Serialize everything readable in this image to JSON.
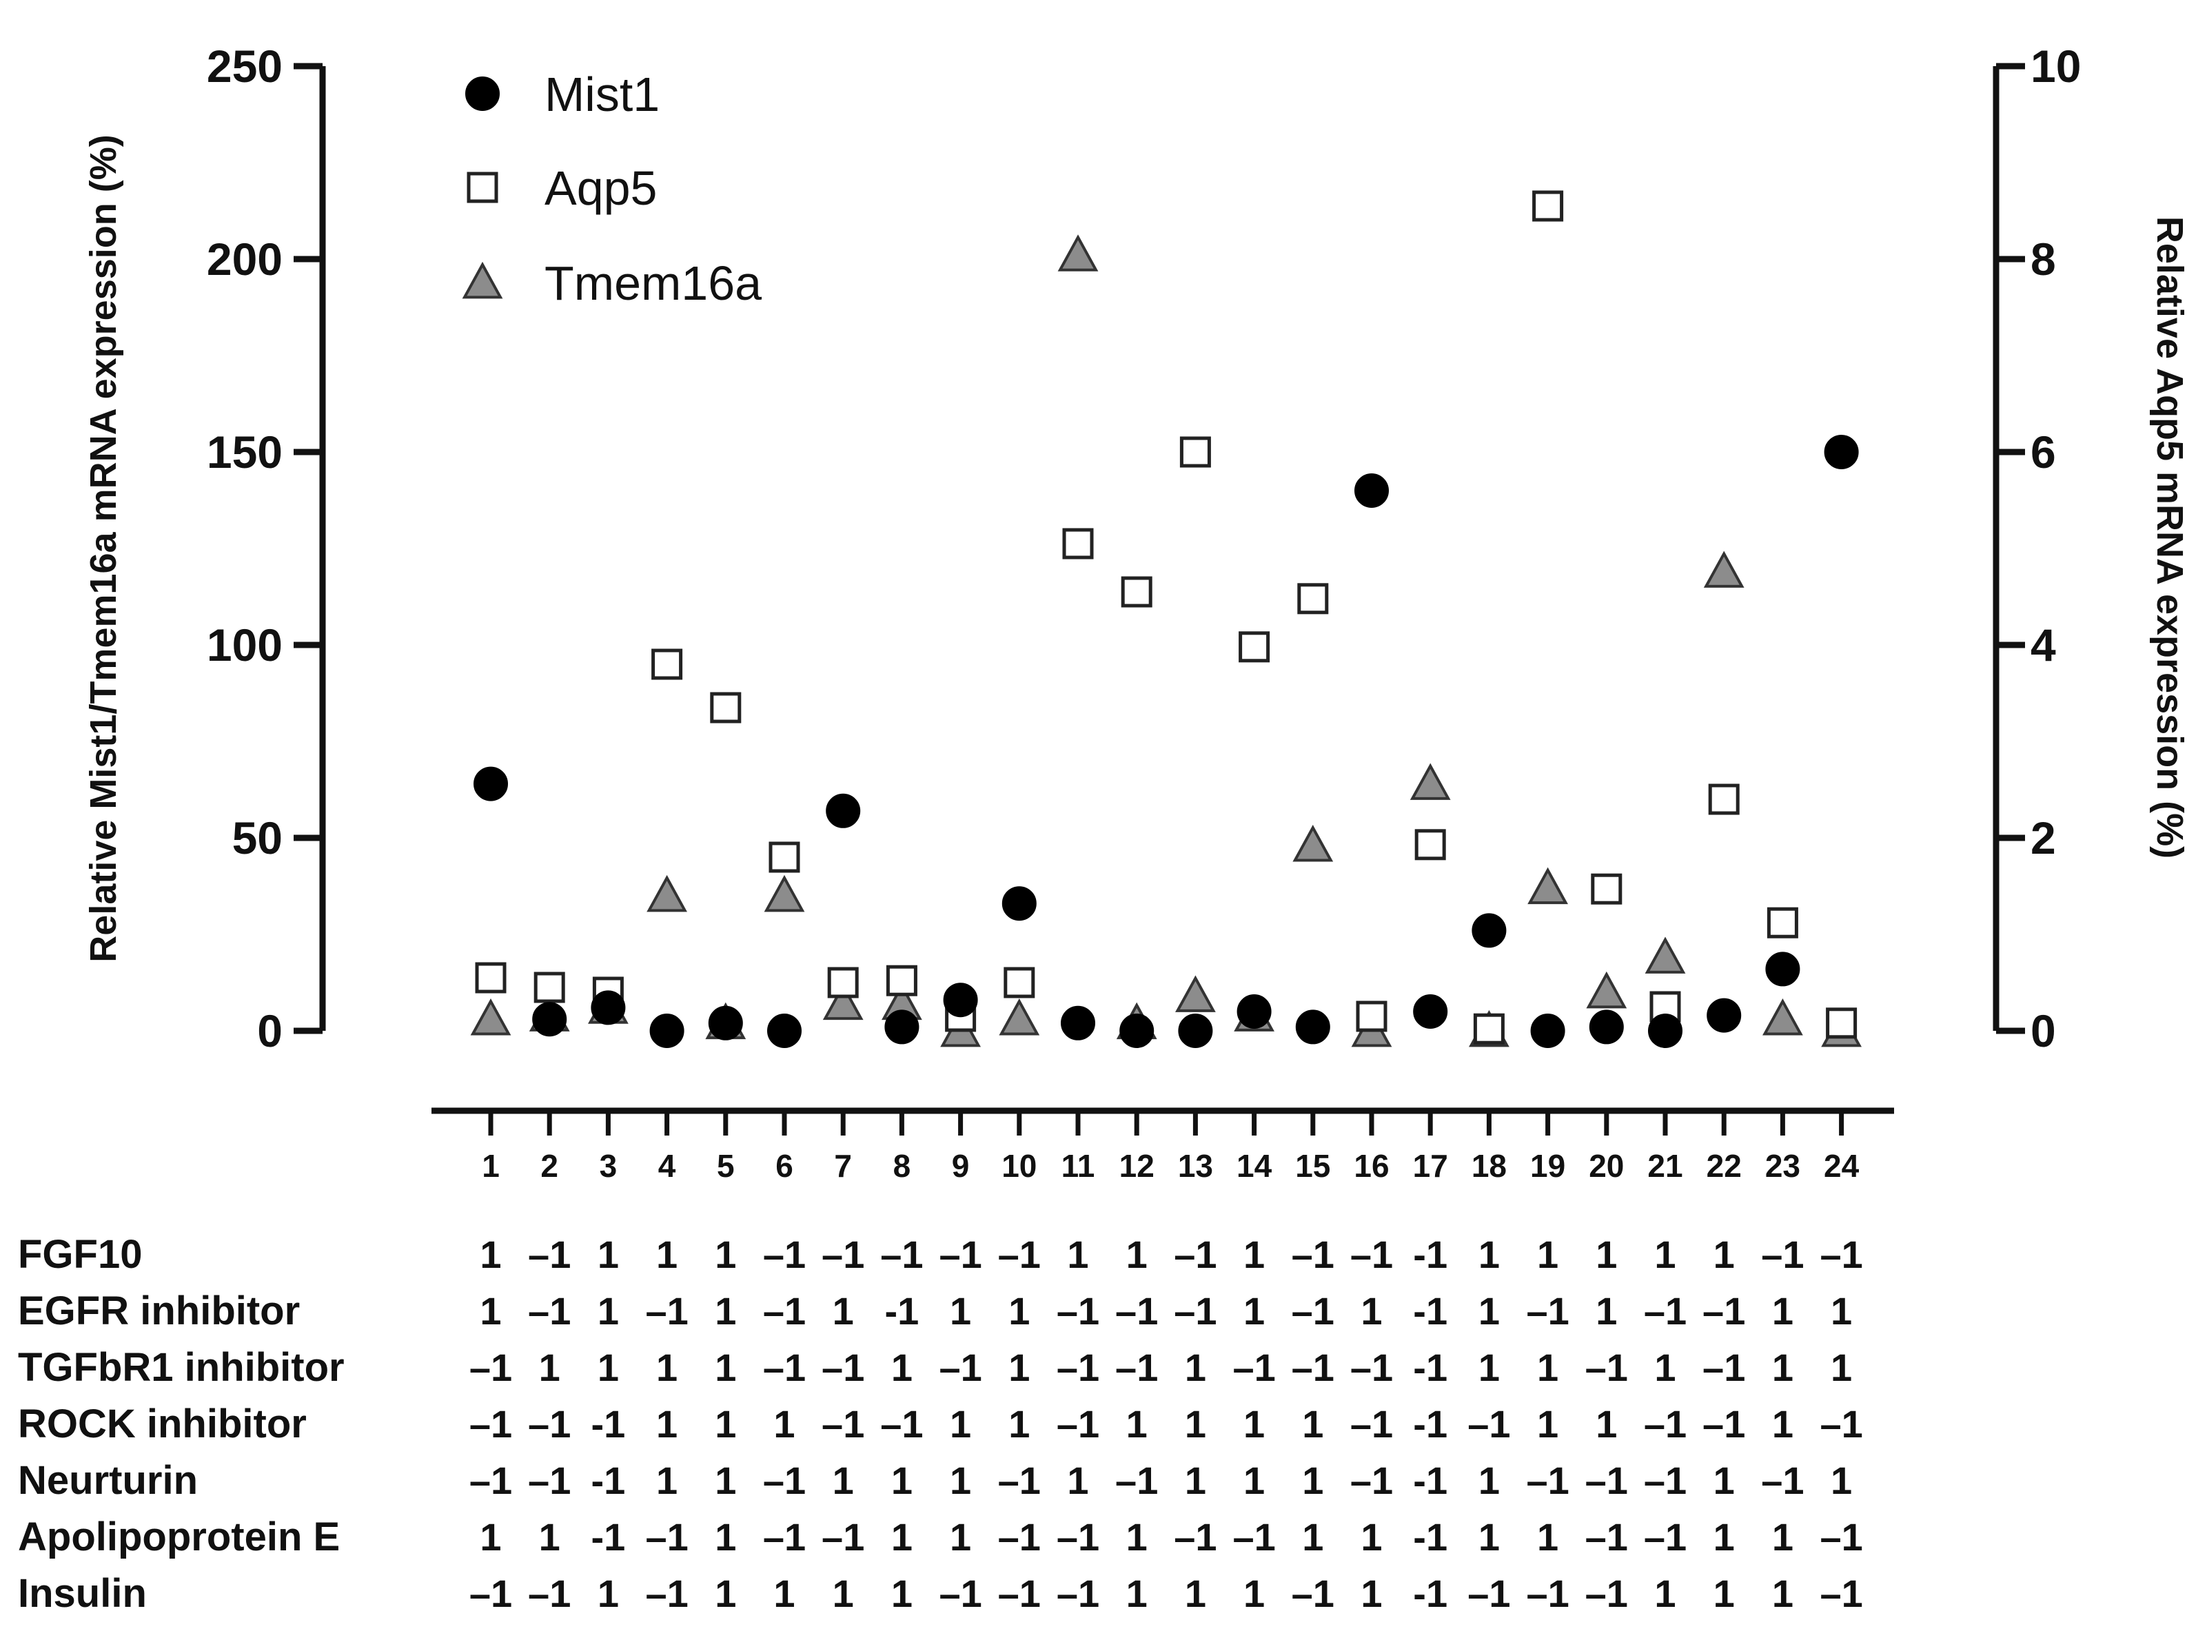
{
  "chart_data": {
    "type": "scatter",
    "categories": [
      "1",
      "2",
      "3",
      "4",
      "5",
      "6",
      "7",
      "8",
      "9",
      "10",
      "11",
      "12",
      "13",
      "14",
      "15",
      "16",
      "17",
      "18",
      "19",
      "20",
      "21",
      "22",
      "23",
      "24"
    ],
    "left_axis": {
      "label": "Relative Mist1/Tmem16a mRNA expression (%)",
      "ylim": [
        0,
        250
      ],
      "ticks": [
        "0",
        "50",
        "100",
        "150",
        "200",
        "250"
      ]
    },
    "right_axis": {
      "label": "Relative Aqp5 mRNA expression (%)",
      "ylim": [
        0,
        10
      ],
      "ticks": [
        "0",
        "2",
        "4",
        "6",
        "8",
        "10"
      ]
    },
    "legend": {
      "position": "top-left"
    },
    "series": [
      {
        "name": "Mist1",
        "axis": "left",
        "marker": "circle",
        "color": "#000000",
        "values": [
          64,
          3,
          6,
          0,
          2,
          0,
          57,
          1,
          8,
          33,
          2,
          0,
          0,
          5,
          1,
          140,
          5,
          26,
          0,
          1,
          0,
          4,
          16,
          150
        ]
      },
      {
        "name": "Aqp5",
        "axis": "right",
        "marker": "open-square",
        "color": "#ffffff",
        "values": [
          0.55,
          0.45,
          0.4,
          3.8,
          3.35,
          1.8,
          0.5,
          0.52,
          0.15,
          0.5,
          5.05,
          4.55,
          6.0,
          3.98,
          4.48,
          0.15,
          1.93,
          0.02,
          8.55,
          1.47,
          0.25,
          2.4,
          1.12,
          0.08
        ]
      },
      {
        "name": "Tmem16a",
        "axis": "left",
        "marker": "triangle",
        "color": "#8c8c8c",
        "values": [
          3,
          4,
          6,
          35,
          2,
          35,
          7,
          7,
          0,
          3,
          201,
          2,
          9,
          4,
          48,
          0,
          64,
          0,
          37,
          10,
          19,
          119,
          3,
          0
        ]
      }
    ],
    "factors": [
      {
        "name": "FGF10",
        "values": [
          "1",
          "–1",
          "1",
          "1",
          "1",
          "–1",
          "–1",
          "–1",
          "–1",
          "–1",
          "1",
          "1",
          "–1",
          "1",
          "–1",
          "–1",
          "-1",
          "1",
          "1",
          "1",
          "1",
          "1",
          "–1",
          "–1"
        ]
      },
      {
        "name": "EGFR inhibitor",
        "values": [
          "1",
          "–1",
          "1",
          "–1",
          "1",
          "–1",
          "1",
          "-1",
          "1",
          "1",
          "–1",
          "–1",
          "–1",
          "1",
          "–1",
          "1",
          "-1",
          "1",
          "–1",
          "1",
          "–1",
          "–1",
          "1",
          "1"
        ]
      },
      {
        "name": "TGFbR1 inhibitor",
        "values": [
          "–1",
          "1",
          "1",
          "1",
          "1",
          "–1",
          "–1",
          "1",
          "–1",
          "1",
          "–1",
          "–1",
          "1",
          "–1",
          "–1",
          "–1",
          "-1",
          "1",
          "1",
          "–1",
          "1",
          "–1",
          "1",
          "1"
        ]
      },
      {
        "name": "ROCK inhibitor",
        "values": [
          "–1",
          "–1",
          "-1",
          "1",
          "1",
          "1",
          "–1",
          "–1",
          "1",
          "1",
          "–1",
          "1",
          "1",
          "1",
          "1",
          "–1",
          "-1",
          "–1",
          "1",
          "1",
          "–1",
          "–1",
          "1",
          "–1"
        ]
      },
      {
        "name": "Neurturin",
        "values": [
          "–1",
          "–1",
          "-1",
          "1",
          "1",
          "–1",
          "1",
          "1",
          "1",
          "–1",
          "1",
          "–1",
          "1",
          "1",
          "1",
          "–1",
          "-1",
          "1",
          "–1",
          "–1",
          "–1",
          "1",
          "–1",
          "1"
        ]
      },
      {
        "name": "Apolipoprotein E",
        "values": [
          "1",
          "1",
          "-1",
          "–1",
          "1",
          "–1",
          "–1",
          "1",
          "1",
          "–1",
          "–1",
          "1",
          "–1",
          "–1",
          "1",
          "1",
          "-1",
          "1",
          "1",
          "–1",
          "–1",
          "1",
          "1",
          "–1"
        ]
      },
      {
        "name": "Insulin",
        "values": [
          "–1",
          "–1",
          "1",
          "–1",
          "1",
          "1",
          "1",
          "1",
          "–1",
          "–1",
          "–1",
          "1",
          "1",
          "1",
          "–1",
          "1",
          "-1",
          "–1",
          "–1",
          "–1",
          "1",
          "1",
          "1",
          "–1"
        ]
      }
    ]
  }
}
